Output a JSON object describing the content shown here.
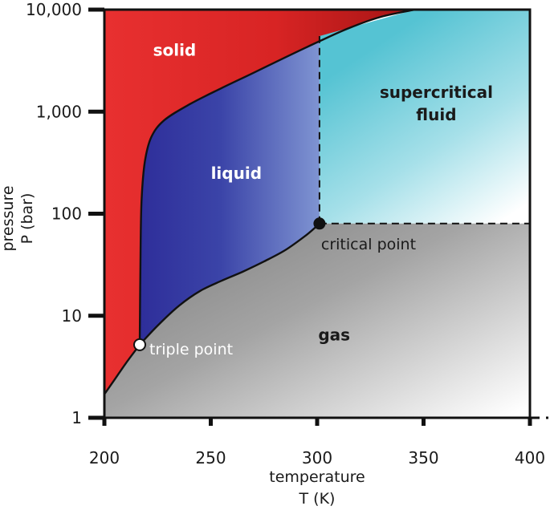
{
  "chart_data": {
    "type": "area",
    "title": "",
    "xlabel": {
      "line1": "temperature",
      "line2": "T (K)"
    },
    "ylabel": {
      "line1": "pressure",
      "line2": "P (bar)"
    },
    "xlim": [
      200,
      400
    ],
    "ylim": [
      1,
      10000
    ],
    "yscale": "log",
    "grid": false,
    "x_ticks": [
      {
        "value": 200,
        "label": "200"
      },
      {
        "value": 250,
        "label": "250"
      },
      {
        "value": 300,
        "label": "300"
      },
      {
        "value": 350,
        "label": "350"
      },
      {
        "value": 400,
        "label": "400"
      }
    ],
    "y_ticks": [
      {
        "value": 1,
        "label": "1"
      },
      {
        "value": 10,
        "label": "10"
      },
      {
        "value": 100,
        "label": "100"
      },
      {
        "value": 1000,
        "label": "1,000"
      },
      {
        "value": 10000,
        "label": "10,000"
      }
    ],
    "regions": [
      {
        "id": "solid",
        "label": "solid",
        "at": [
          233,
          4000
        ],
        "color": "#e02a2a",
        "text_color": "#ffffff"
      },
      {
        "id": "liquid",
        "label": "liquid",
        "at": [
          262,
          250
        ],
        "color": "#3a3fa6",
        "text_color": "#ffffff"
      },
      {
        "id": "supercritical",
        "label": "supercritical",
        "label2": "fluid",
        "at": [
          356,
          1300
        ],
        "color": "#55c3d3",
        "text_color": "#1a1a1a"
      },
      {
        "id": "gas",
        "label": "gas",
        "at": [
          308,
          6.5
        ],
        "color": "#8c8c8c",
        "text_color": "#1a1a1a"
      }
    ],
    "points": [
      {
        "name": "triple point",
        "label": "triple point",
        "x": 216.6,
        "y": 5.2,
        "fill": "#ffffff",
        "label_color": "#ffffff"
      },
      {
        "name": "critical point",
        "label": "critical point",
        "x": 301.1,
        "y": 80,
        "fill": "#111111",
        "label_color": "#1a1a1a"
      }
    ],
    "boundaries": {
      "sublimation": [
        [
          200,
          1.7
        ],
        [
          205,
          2.4
        ],
        [
          210,
          3.4
        ],
        [
          216.6,
          5.2
        ]
      ],
      "vaporization": [
        [
          216.6,
          5.2
        ],
        [
          225,
          8
        ],
        [
          235,
          12.5
        ],
        [
          245,
          17.5
        ],
        [
          255,
          22
        ],
        [
          265,
          27
        ],
        [
          275,
          34
        ],
        [
          285,
          44
        ],
        [
          295,
          62
        ],
        [
          301.1,
          80
        ]
      ],
      "melting": [
        [
          216.6,
          5.2
        ],
        [
          217,
          45
        ],
        [
          217.5,
          140
        ],
        [
          219,
          320
        ],
        [
          222,
          560
        ],
        [
          228,
          820
        ],
        [
          240,
          1180
        ],
        [
          255,
          1700
        ],
        [
          270,
          2400
        ],
        [
          285,
          3400
        ],
        [
          301.1,
          4900
        ],
        [
          315,
          6600
        ],
        [
          330,
          8500
        ],
        [
          346,
          10000
        ]
      ],
      "critical_isotherm": [
        [
          301.1,
          80
        ],
        [
          301.1,
          5500
        ]
      ],
      "critical_isobar": [
        [
          301.1,
          80
        ],
        [
          400,
          80
        ]
      ]
    }
  }
}
